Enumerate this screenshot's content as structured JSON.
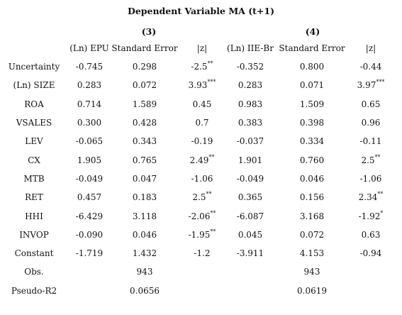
{
  "title": "Dependent Variable MA (t+1)",
  "models": [
    "(3)",
    "(4)"
  ],
  "columns": [
    "",
    "(Ln) EPU",
    "Standard Error",
    "|z|",
    "(Ln) IIE-Br",
    "Standard Error",
    "|z|"
  ],
  "rows": [
    {
      "name": "Uncertainty",
      "cells": [
        {
          "v": "-0.745"
        },
        {
          "v": "0.298"
        },
        {
          "v": "-2.5",
          "sig": "**"
        },
        {
          "v": "-0.352"
        },
        {
          "v": "0.800"
        },
        {
          "v": "-0.44"
        }
      ]
    },
    {
      "name": "(Ln) SIZE",
      "cells": [
        {
          "v": "0.283"
        },
        {
          "v": "0.072"
        },
        {
          "v": "3.93",
          "sig": "***"
        },
        {
          "v": "0.283"
        },
        {
          "v": "0.071"
        },
        {
          "v": "3.97",
          "sig": "***"
        }
      ]
    },
    {
      "name": "ROA",
      "cells": [
        {
          "v": "0.714"
        },
        {
          "v": "1.589"
        },
        {
          "v": "0.45"
        },
        {
          "v": "0.983"
        },
        {
          "v": "1.509"
        },
        {
          "v": "0.65"
        }
      ]
    },
    {
      "name": "VSALES",
      "cells": [
        {
          "v": "0.300"
        },
        {
          "v": "0.428"
        },
        {
          "v": "0.7"
        },
        {
          "v": "0.383"
        },
        {
          "v": "0.398"
        },
        {
          "v": "0.96"
        }
      ]
    },
    {
      "name": "LEV",
      "cells": [
        {
          "v": "-0.065"
        },
        {
          "v": "0.343"
        },
        {
          "v": "-0.19"
        },
        {
          "v": "-0.037"
        },
        {
          "v": "0.334"
        },
        {
          "v": "-0.11"
        }
      ]
    },
    {
      "name": "CX",
      "cells": [
        {
          "v": "1.905"
        },
        {
          "v": "0.765"
        },
        {
          "v": "2.49",
          "sig": "**"
        },
        {
          "v": "1.901"
        },
        {
          "v": "0.760"
        },
        {
          "v": "2.5",
          "sig": "**"
        }
      ]
    },
    {
      "name": "MTB",
      "cells": [
        {
          "v": "-0.049"
        },
        {
          "v": "0.047"
        },
        {
          "v": "-1.06"
        },
        {
          "v": "-0.049"
        },
        {
          "v": "0.046"
        },
        {
          "v": "-1.06"
        }
      ]
    },
    {
      "name": "RET",
      "cells": [
        {
          "v": "0.457"
        },
        {
          "v": "0.183"
        },
        {
          "v": "2.5",
          "sig": "**"
        },
        {
          "v": "0.365"
        },
        {
          "v": "0.156"
        },
        {
          "v": "2.34",
          "sig": "**"
        }
      ]
    },
    {
      "name": "HHI",
      "cells": [
        {
          "v": "-6.429"
        },
        {
          "v": "3.118"
        },
        {
          "v": "-2.06",
          "sig": "**"
        },
        {
          "v": "-6.087"
        },
        {
          "v": "3.168"
        },
        {
          "v": "-1.92",
          "sig": "*"
        }
      ]
    },
    {
      "name": "INVOP",
      "cells": [
        {
          "v": "-0.090"
        },
        {
          "v": "0.046"
        },
        {
          "v": "-1.95",
          "sig": "**"
        },
        {
          "v": "0.045"
        },
        {
          "v": "0.072"
        },
        {
          "v": "0.63"
        }
      ]
    },
    {
      "name": "Constant",
      "cells": [
        {
          "v": "-1.719"
        },
        {
          "v": "1.432"
        },
        {
          "v": "-1.2"
        },
        {
          "v": "-3.911"
        },
        {
          "v": "4.153"
        },
        {
          "v": "-0.94"
        }
      ]
    },
    {
      "name": "Obs.",
      "cells": [
        {
          "v": ""
        },
        {
          "v": "943"
        },
        {
          "v": ""
        },
        {
          "v": ""
        },
        {
          "v": "943"
        },
        {
          "v": ""
        }
      ]
    },
    {
      "name": "Pseudo-R2",
      "cells": [
        {
          "v": ""
        },
        {
          "v": "0.0656"
        },
        {
          "v": ""
        },
        {
          "v": ""
        },
        {
          "v": "0.0619"
        },
        {
          "v": ""
        }
      ]
    }
  ]
}
